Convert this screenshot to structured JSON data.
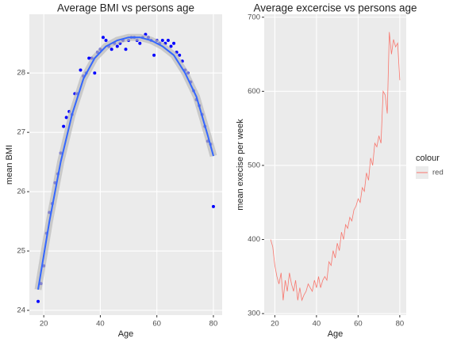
{
  "chart_data": [
    {
      "type": "scatter",
      "title": "Average BMI vs persons age",
      "x_label": "Age",
      "y_label": "mean BMI",
      "color": "#0000FF",
      "x": [
        18,
        19,
        20,
        21,
        22,
        23,
        24,
        25,
        26,
        27,
        28,
        29,
        30,
        31,
        32,
        33,
        34,
        35,
        36,
        37,
        38,
        39,
        40,
        41,
        42,
        43,
        44,
        45,
        46,
        47,
        48,
        49,
        50,
        51,
        52,
        53,
        54,
        55,
        56,
        57,
        58,
        59,
        60,
        61,
        62,
        63,
        64,
        65,
        66,
        67,
        68,
        69,
        70,
        71,
        72,
        73,
        74,
        75,
        76,
        77,
        78,
        79,
        80
      ],
      "values": [
        24.15,
        24.45,
        24.75,
        25.3,
        25.65,
        25.8,
        26.15,
        26.3,
        26.65,
        27.1,
        27.25,
        27.35,
        27.3,
        27.65,
        27.65,
        28.05,
        27.95,
        28.0,
        28.25,
        28.25,
        28.0,
        28.35,
        28.4,
        28.6,
        28.55,
        28.45,
        28.4,
        28.5,
        28.45,
        28.5,
        28.55,
        28.4,
        28.55,
        28.6,
        28.6,
        28.55,
        28.5,
        28.6,
        28.65,
        28.6,
        28.55,
        28.3,
        28.55,
        28.5,
        28.55,
        28.5,
        28.55,
        28.45,
        28.5,
        28.35,
        28.3,
        28.2,
        28.05,
        28.0,
        27.85,
        27.7,
        27.55,
        27.45,
        27.3,
        27.1,
        26.85,
        26.8,
        25.75
      ],
      "smooth": {
        "color": "#3366FF",
        "x": [
          18,
          22,
          26,
          30,
          34,
          38,
          42,
          46,
          50,
          54,
          58,
          62,
          66,
          70,
          74,
          78,
          80
        ],
        "values": [
          24.35,
          25.5,
          26.5,
          27.3,
          27.9,
          28.25,
          28.45,
          28.55,
          28.6,
          28.6,
          28.55,
          28.45,
          28.3,
          28.0,
          27.6,
          26.95,
          26.6
        ]
      },
      "xlim": [
        14.9,
        83.1
      ],
      "xticks": [
        20,
        40,
        60,
        80
      ],
      "ylim": [
        23.92,
        28.99
      ],
      "yticks": [
        24,
        25,
        26,
        27,
        28
      ],
      "grid": true
    },
    {
      "type": "line",
      "title": "Average excercise vs persons age",
      "x_label": "Age",
      "y_label": "mean execise per week",
      "x": [
        18,
        19,
        20,
        21,
        22,
        23,
        24,
        25,
        26,
        27,
        28,
        29,
        30,
        31,
        32,
        33,
        34,
        35,
        36,
        37,
        38,
        39,
        40,
        41,
        42,
        43,
        44,
        45,
        46,
        47,
        48,
        49,
        50,
        51,
        52,
        53,
        54,
        55,
        56,
        57,
        58,
        59,
        60,
        61,
        62,
        63,
        64,
        65,
        66,
        67,
        68,
        69,
        70,
        71,
        72,
        73,
        74,
        75,
        76,
        77,
        78,
        79,
        80
      ],
      "series": [
        {
          "name": "red",
          "color": "#F8766D",
          "values": [
            400,
            390,
            365,
            350,
            340,
            355,
            318,
            345,
            330,
            355,
            340,
            330,
            345,
            318,
            335,
            318,
            325,
            330,
            340,
            335,
            330,
            345,
            335,
            350,
            335,
            345,
            350,
            345,
            370,
            365,
            385,
            375,
            395,
            385,
            410,
            400,
            420,
            415,
            430,
            425,
            440,
            445,
            455,
            450,
            470,
            465,
            490,
            480,
            510,
            500,
            530,
            525,
            540,
            530,
            600,
            595,
            570,
            680,
            650,
            670,
            660,
            665,
            615
          ]
        }
      ],
      "legend_title": "colour",
      "legend": "right",
      "xlim": [
        14.9,
        83.1
      ],
      "xticks": [
        20,
        40,
        60,
        80
      ],
      "ylim": [
        298,
        704
      ],
      "yticks": [
        300,
        400,
        500,
        600,
        700
      ],
      "grid": true
    }
  ]
}
